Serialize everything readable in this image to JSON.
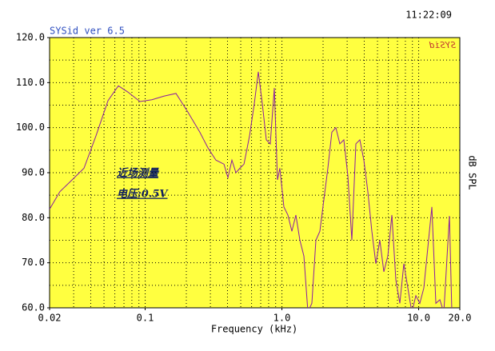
{
  "chart_data": {
    "type": "line",
    "title": "SYSid ver 6.5",
    "time": "11:22:09",
    "watermark": "SYSid",
    "x_label": "Frequency (kHz)",
    "y_label": "dB SPL",
    "annotations": [
      "近场测量",
      "电压:0.5V"
    ],
    "xscale": "log",
    "grid": true,
    "minor_grid": true,
    "background": "#ffff40",
    "xlim": [
      0.02,
      20
    ],
    "ylim": [
      60,
      120
    ],
    "xticks": [
      0.02,
      0.1,
      {
        "value": 1,
        "label": "1.0"
      },
      {
        "value": 10,
        "label": "10.0"
      },
      {
        "value": 20,
        "label": "20.0"
      }
    ],
    "yticks": [
      {
        "value": 60,
        "label": "60.0"
      },
      {
        "value": 70,
        "label": "70.0"
      },
      {
        "value": 80,
        "label": "80.0"
      },
      {
        "value": 90,
        "label": "90.0"
      },
      {
        "value": 100,
        "label": "100.0"
      },
      {
        "value": 110,
        "label": "110.0"
      },
      {
        "value": 120,
        "label": "120.0"
      }
    ],
    "x": [
      0.02,
      0.0238,
      0.0292,
      0.0357,
      0.0437,
      0.0535,
      0.0637,
      0.0748,
      0.0916,
      0.112,
      0.137,
      0.168,
      0.205,
      0.251,
      0.288,
      0.329,
      0.377,
      0.403,
      0.431,
      0.461,
      0.493,
      0.528,
      0.58,
      0.628,
      0.672,
      0.719,
      0.769,
      0.822,
      0.88,
      0.928,
      0.966,
      1.034,
      1.106,
      1.183,
      1.265,
      1.354,
      1.448,
      1.549,
      1.656,
      1.772,
      1.895,
      2.027,
      2.168,
      2.319,
      2.481,
      2.653,
      2.838,
      3.036,
      3.247,
      3.474,
      3.716,
      3.974,
      4.251,
      4.547,
      4.864,
      5.203,
      5.565,
      5.953,
      6.368,
      6.812,
      7.286,
      7.793,
      8.337,
      8.917,
      9.539,
      10.2,
      10.91,
      12.49,
      13.36,
      14.29,
      15.28,
      16.79,
      17.49
    ],
    "series": [
      {
        "name": "SPL",
        "color": "#8a1ea0",
        "values": [
          81.9,
          85.8,
          88.4,
          91,
          98.2,
          106,
          109.3,
          107.9,
          105.8,
          106.2,
          107,
          107.6,
          103.5,
          99,
          95.5,
          92.8,
          91.9,
          88.9,
          92.8,
          90,
          91,
          91.9,
          98.2,
          105.3,
          112.4,
          105.3,
          97.3,
          96.4,
          108.8,
          88.4,
          91,
          82.4,
          80.6,
          77,
          80.6,
          75,
          71.5,
          59.1,
          61,
          75,
          77,
          84,
          91,
          99,
          100,
          96.4,
          97.3,
          89.3,
          75,
          96.4,
          97.3,
          92.8,
          85.8,
          77,
          69.8,
          75,
          68,
          71.5,
          80.6,
          66.2,
          61,
          69.8,
          64.4,
          59,
          62.7,
          61,
          64.4,
          82.4,
          61,
          61.8,
          59,
          80.4,
          59
        ]
      }
    ]
  }
}
